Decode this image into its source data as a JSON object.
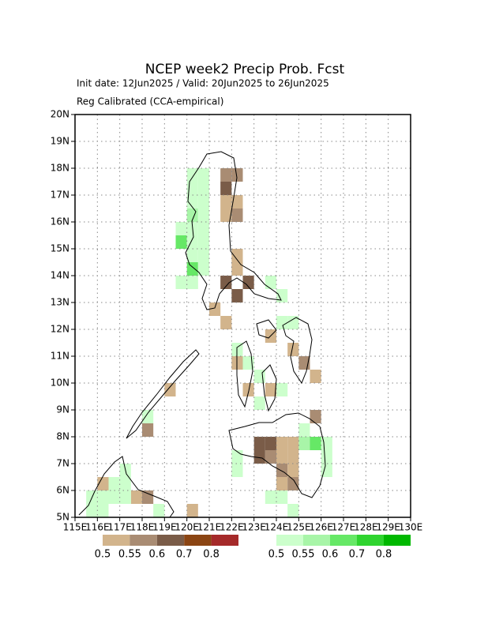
{
  "map_data": {
    "title": "NCEP week2 Precip Prob. Fcst",
    "subtitle": "Init date: 12Jun2025 / Valid: 20Jun2025 to 26Jun2025",
    "method": "Reg Calibrated (CCA-empirical)",
    "xlim": [
      115,
      130
    ],
    "ylim": [
      5,
      20
    ],
    "xticks": [
      {
        "value": 115,
        "label": "115E"
      },
      {
        "value": 116,
        "label": "116E"
      },
      {
        "value": 117,
        "label": "117E"
      },
      {
        "value": 118,
        "label": "118E"
      },
      {
        "value": 119,
        "label": "119E"
      },
      {
        "value": 120,
        "label": "120E"
      },
      {
        "value": 121,
        "label": "121E"
      },
      {
        "value": 122,
        "label": "122E"
      },
      {
        "value": 123,
        "label": "123E"
      },
      {
        "value": 124,
        "label": "124E"
      },
      {
        "value": 125,
        "label": "125E"
      },
      {
        "value": 126,
        "label": "126E"
      },
      {
        "value": 127,
        "label": "127E"
      },
      {
        "value": 128,
        "label": "128E"
      },
      {
        "value": 129,
        "label": "129E"
      },
      {
        "value": 130,
        "label": "130E"
      }
    ],
    "yticks": [
      {
        "value": 5,
        "label": "5N"
      },
      {
        "value": 6,
        "label": "6N"
      },
      {
        "value": 7,
        "label": "7N"
      },
      {
        "value": 8,
        "label": "8N"
      },
      {
        "value": 9,
        "label": "9N"
      },
      {
        "value": 10,
        "label": "10N"
      },
      {
        "value": 11,
        "label": "11N"
      },
      {
        "value": 12,
        "label": "12N"
      },
      {
        "value": 13,
        "label": "13N"
      },
      {
        "value": 14,
        "label": "14N"
      },
      {
        "value": 15,
        "label": "15N"
      },
      {
        "value": 16,
        "label": "16N"
      },
      {
        "value": 17,
        "label": "17N"
      },
      {
        "value": 18,
        "label": "18N"
      },
      {
        "value": 19,
        "label": "19N"
      },
      {
        "value": 20,
        "label": "20N"
      }
    ],
    "grid": true,
    "cell_size": 0.5,
    "levels": [
      0.5,
      0.55,
      0.6,
      0.7,
      0.8
    ],
    "dry_colors": [
      "#d2b48c",
      "#a98c73",
      "#7a5c48",
      "#8b4513",
      "#a52a2a"
    ],
    "wet_colors": [
      "#ccffcc",
      "#a8f5a8",
      "#66e866",
      "#2fd42f",
      "#00b800"
    ],
    "dry_cells": [
      [
        121.75,
        17.75,
        0.55
      ],
      [
        122.25,
        17.75,
        0.55
      ],
      [
        121.75,
        17.25,
        0.6
      ],
      [
        121.75,
        16.75,
        0.5
      ],
      [
        122.25,
        16.75,
        0.5
      ],
      [
        121.75,
        16.25,
        0.5
      ],
      [
        122.25,
        16.25,
        0.55
      ],
      [
        122.25,
        14.75,
        0.5
      ],
      [
        122.25,
        14.25,
        0.5
      ],
      [
        121.75,
        13.75,
        0.6
      ],
      [
        122.75,
        13.75,
        0.6
      ],
      [
        122.25,
        13.25,
        0.6
      ],
      [
        121.25,
        12.75,
        0.5
      ],
      [
        121.75,
        12.25,
        0.5
      ],
      [
        123.75,
        11.75,
        0.5
      ],
      [
        122.25,
        10.75,
        0.5
      ],
      [
        124.75,
        11.25,
        0.5
      ],
      [
        125.25,
        10.75,
        0.55
      ],
      [
        125.75,
        10.25,
        0.5
      ],
      [
        123.75,
        9.75,
        0.5
      ],
      [
        122.75,
        9.75,
        0.5
      ],
      [
        119.25,
        9.75,
        0.5
      ],
      [
        125.75,
        8.75,
        0.55
      ],
      [
        118.25,
        8.25,
        0.55
      ],
      [
        123.25,
        7.75,
        0.6
      ],
      [
        123.75,
        7.75,
        0.6
      ],
      [
        124.25,
        7.75,
        0.5
      ],
      [
        124.75,
        7.75,
        0.5
      ],
      [
        123.25,
        7.25,
        0.6
      ],
      [
        123.75,
        7.25,
        0.55
      ],
      [
        124.25,
        7.25,
        0.5
      ],
      [
        124.75,
        7.25,
        0.5
      ],
      [
        124.25,
        6.75,
        0.55
      ],
      [
        124.75,
        6.75,
        0.5
      ],
      [
        124.25,
        6.25,
        0.5
      ],
      [
        124.75,
        6.25,
        0.55
      ],
      [
        116.25,
        6.25,
        0.5
      ],
      [
        117.75,
        5.75,
        0.5
      ],
      [
        118.25,
        5.75,
        0.55
      ],
      [
        120.25,
        5.25,
        0.5
      ]
    ],
    "wet_cells": [
      [
        120.25,
        17.75,
        0.5
      ],
      [
        120.75,
        17.75,
        0.5
      ],
      [
        120.25,
        17.25,
        0.5
      ],
      [
        120.75,
        17.25,
        0.5
      ],
      [
        120.25,
        16.75,
        0.5
      ],
      [
        120.75,
        16.75,
        0.5
      ],
      [
        120.25,
        16.25,
        0.55
      ],
      [
        120.75,
        16.25,
        0.5
      ],
      [
        119.75,
        15.75,
        0.5
      ],
      [
        120.25,
        15.75,
        0.5
      ],
      [
        120.75,
        15.75,
        0.5
      ],
      [
        119.75,
        15.25,
        0.6
      ],
      [
        120.25,
        15.25,
        0.5
      ],
      [
        120.75,
        15.25,
        0.5
      ],
      [
        120.25,
        14.75,
        0.5
      ],
      [
        120.75,
        14.75,
        0.5
      ],
      [
        120.25,
        14.25,
        0.6
      ],
      [
        120.75,
        14.25,
        0.5
      ],
      [
        119.75,
        13.75,
        0.5
      ],
      [
        120.25,
        13.75,
        0.5
      ],
      [
        123.75,
        13.75,
        0.5
      ],
      [
        124.25,
        13.25,
        0.5
      ],
      [
        124.25,
        12.25,
        0.5
      ],
      [
        124.75,
        12.25,
        0.5
      ],
      [
        122.25,
        11.25,
        0.5
      ],
      [
        122.75,
        10.75,
        0.5
      ],
      [
        123.25,
        10.25,
        0.5
      ],
      [
        123.25,
        9.25,
        0.5
      ],
      [
        124.25,
        9.75,
        0.5
      ],
      [
        125.25,
        8.25,
        0.5
      ],
      [
        125.25,
        7.75,
        0.55
      ],
      [
        125.75,
        7.75,
        0.6
      ],
      [
        126.25,
        7.75,
        0.5
      ],
      [
        126.25,
        7.25,
        0.5
      ],
      [
        126.25,
        6.75,
        0.5
      ],
      [
        122.25,
        7.25,
        0.5
      ],
      [
        122.25,
        6.75,
        0.5
      ],
      [
        123.75,
        5.75,
        0.5
      ],
      [
        124.25,
        5.75,
        0.5
      ],
      [
        124.75,
        5.25,
        0.5
      ],
      [
        118.25,
        8.75,
        0.5
      ],
      [
        117.25,
        6.75,
        0.5
      ],
      [
        116.75,
        6.25,
        0.5
      ],
      [
        117.25,
        6.25,
        0.5
      ],
      [
        115.75,
        5.75,
        0.5
      ],
      [
        116.25,
        5.75,
        0.5
      ],
      [
        116.75,
        5.75,
        0.5
      ],
      [
        117.25,
        5.75,
        0.5
      ],
      [
        115.75,
        5.25,
        0.5
      ],
      [
        116.25,
        5.25,
        0.5
      ],
      [
        118.75,
        5.25,
        0.5
      ]
    ]
  }
}
